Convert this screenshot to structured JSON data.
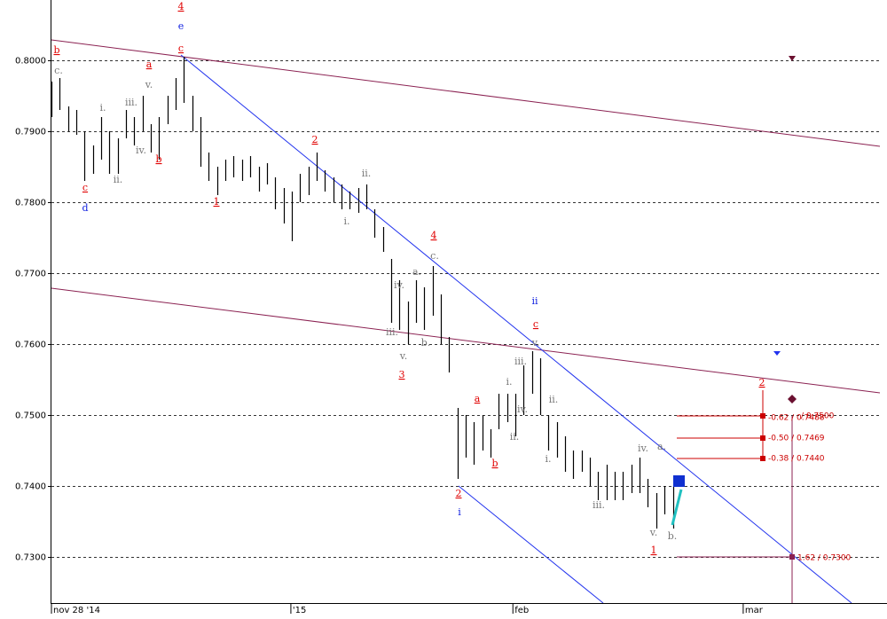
{
  "chart_data": {
    "type": "ohlc",
    "xlim": [
      0,
      100
    ],
    "xticks": [
      {
        "value": 0,
        "label": "nov 28 '14"
      },
      {
        "value": 28.9,
        "label": "'15"
      },
      {
        "value": 55.7,
        "label": "feb"
      },
      {
        "value": 83.5,
        "label": "mar"
      }
    ],
    "ylim": [
      0.7235,
      0.8085
    ],
    "yticks": [
      {
        "value": 0.73,
        "label": "0.7300"
      },
      {
        "value": 0.74,
        "label": "0.7400"
      },
      {
        "value": 0.75,
        "label": "0.7500"
      },
      {
        "value": 0.76,
        "label": "0.7600"
      },
      {
        "value": 0.77,
        "label": "0.7700"
      },
      {
        "value": 0.78,
        "label": "0.7800"
      },
      {
        "value": 0.79,
        "label": "0.7900"
      },
      {
        "value": 0.8,
        "label": "0.8000"
      }
    ],
    "grid": true,
    "color": "#000000",
    "x": [
      0,
      1,
      2,
      3,
      4,
      5,
      6,
      7,
      8,
      9,
      10,
      11,
      12,
      13,
      14,
      15,
      16,
      17,
      18,
      19,
      20,
      21,
      22,
      23,
      24,
      25,
      26,
      27,
      28,
      29,
      30,
      31,
      32,
      33,
      34,
      35,
      36,
      37,
      38,
      39,
      40,
      41,
      42,
      43,
      44,
      45,
      46,
      47,
      48,
      49,
      50,
      51,
      52,
      53,
      54,
      55,
      56,
      57,
      58,
      59,
      60,
      61,
      62,
      63,
      64,
      65,
      66,
      67,
      68,
      69,
      70,
      71,
      72,
      73,
      74,
      75
    ],
    "high": [
      0.797,
      0.7975,
      0.7935,
      0.793,
      0.79,
      0.788,
      0.792,
      0.79,
      0.789,
      0.793,
      0.792,
      0.795,
      0.791,
      0.792,
      0.795,
      0.7975,
      0.8005,
      0.795,
      0.792,
      0.787,
      0.785,
      0.786,
      0.7865,
      0.786,
      0.7865,
      0.785,
      0.7855,
      0.7835,
      0.782,
      0.7815,
      0.784,
      0.785,
      0.787,
      0.7845,
      0.7835,
      0.7825,
      0.7815,
      0.782,
      0.7825,
      0.779,
      0.7765,
      0.772,
      0.769,
      0.766,
      0.769,
      0.768,
      0.771,
      0.767,
      0.761,
      0.751,
      0.75,
      0.749,
      0.75,
      0.748,
      0.753,
      0.753,
      0.753,
      0.757,
      0.759,
      0.758,
      0.75,
      0.749,
      0.747,
      0.745,
      0.745,
      0.744,
      0.742,
      0.743,
      0.742,
      0.742,
      0.743,
      0.744,
      0.741,
      0.739,
      0.74,
      0.74
    ],
    "low": [
      0.792,
      0.793,
      0.79,
      0.7895,
      0.783,
      0.784,
      0.786,
      0.784,
      0.784,
      0.789,
      0.788,
      0.79,
      0.787,
      0.786,
      0.791,
      0.793,
      0.794,
      0.79,
      0.785,
      0.783,
      0.781,
      0.783,
      0.7835,
      0.783,
      0.7835,
      0.7815,
      0.7825,
      0.779,
      0.777,
      0.7745,
      0.78,
      0.781,
      0.783,
      0.7815,
      0.78,
      0.779,
      0.779,
      0.7785,
      0.779,
      0.775,
      0.773,
      0.763,
      0.762,
      0.76,
      0.763,
      0.762,
      0.764,
      0.76,
      0.756,
      0.741,
      0.744,
      0.743,
      0.745,
      0.744,
      0.748,
      0.749,
      0.747,
      0.75,
      0.753,
      0.75,
      0.745,
      0.744,
      0.742,
      0.741,
      0.742,
      0.74,
      0.738,
      0.738,
      0.738,
      0.738,
      0.739,
      0.739,
      0.737,
      0.734,
      0.736,
      0.734
    ],
    "annotations": [
      "4",
      "e",
      "c",
      "b",
      "c.",
      "a",
      "v.",
      "i.",
      "iii.",
      "iv.",
      "b",
      "ii.",
      "c",
      "d",
      "1",
      "2",
      "ii.",
      "i.",
      "4",
      "c.",
      "a.",
      "iv.",
      "iii.",
      "b.",
      "v.",
      "3",
      "a",
      "b",
      "2",
      "i",
      "ii",
      "c",
      "v.",
      "iii.",
      "i.",
      "iv.",
      "ii.",
      "ii.",
      "i.",
      "iii.",
      "iv.",
      "a.",
      "v.",
      "b.",
      "1",
      "2"
    ],
    "fib_labels": [
      "-0.62 / 0.7488",
      "/ 0.7500",
      "-0.50 / 0.7469",
      "-0.38 / 0.7440",
      "1.62 / 0.7300"
    ]
  }
}
